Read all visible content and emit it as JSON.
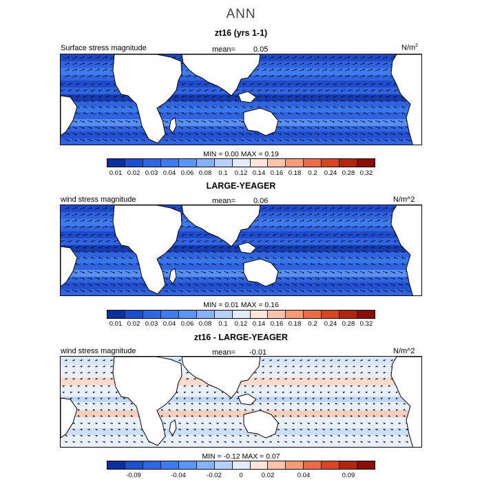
{
  "title": "ANN",
  "colors": {
    "positive_palette": [
      "#08309e",
      "#1a4fd0",
      "#2a67e6",
      "#3b7df0",
      "#5a97f5",
      "#86b3f7",
      "#b5d0fa",
      "#e0ecfc",
      "#fde5d8",
      "#fbc4aa",
      "#f79b77",
      "#ec6a45",
      "#d9431f",
      "#b4250f",
      "#8c0d05"
    ],
    "diff_palette": [
      "#08309e",
      "#1a4fd0",
      "#2a67e6",
      "#3b7df0",
      "#5a97f5",
      "#86b3f7",
      "#b5d0fa",
      "#e0ecfc",
      "#fde5d8",
      "#fbc4aa",
      "#f79b77",
      "#ec6a45",
      "#d9431f",
      "#b4250f",
      "#8c0d05"
    ],
    "land": "#ffffff",
    "coast": "#000000"
  },
  "panels": [
    {
      "title": "zt16 (yrs 1-1)",
      "field_label": "Surface stress magnitude",
      "mean_label": "mean=",
      "mean_value": "0.05",
      "units": "N/m",
      "units_sup": "2",
      "min_max": "MIN =    0.00  MAX =    0.19",
      "colorbar_labels": [
        "0.01",
        "0.02",
        "0.03",
        "0.04",
        "0.06",
        "0.08",
        "0.1",
        "0.12",
        "0.14",
        "0.16",
        "0.18",
        "0.2",
        "0.24",
        "0.28",
        "0.32"
      ]
    },
    {
      "title": "LARGE-YEAGER",
      "field_label": "wind stress magnitude",
      "mean_label": "mean=",
      "mean_value": "0.06",
      "units": "N/m^2",
      "units_sup": "",
      "min_max": "MIN =    0.01  MAX =    0.16",
      "colorbar_labels": [
        "0.01",
        "0.02",
        "0.03",
        "0.04",
        "0.06",
        "0.08",
        "0.1",
        "0.12",
        "0.14",
        "0.16",
        "0.18",
        "0.2",
        "0.24",
        "0.28",
        "0.32"
      ]
    },
    {
      "title": "zt16 - LARGE-YEAGER",
      "field_label": "wind stress magnitude",
      "mean_label": "mean=",
      "mean_value": "-0.01",
      "units": "N/m^2",
      "units_sup": "",
      "min_max": "MIN =  -0.12  MAX =    0.07",
      "colorbar_labels": [
        "-0.09",
        "-0.04",
        "-0.02",
        "0",
        "0.02",
        "0.04",
        "0.09"
      ]
    }
  ]
}
